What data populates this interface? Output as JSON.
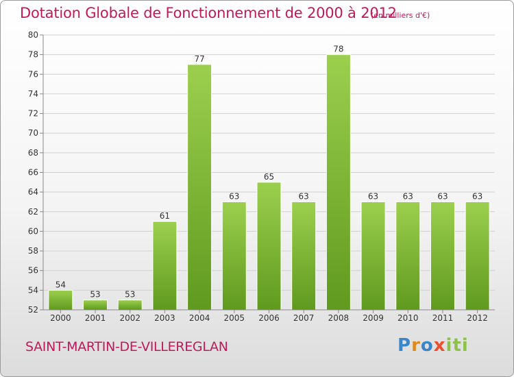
{
  "title": "Dotation Globale de Fonctionnement de 2000 à 2012",
  "subtitle": "(en milliers d'€)",
  "commune": "SAINT-MARTIN-DE-VILLEREGLAN",
  "logo": {
    "text": "Proxiti"
  },
  "colors": {
    "bar": "#8dc63f",
    "bar_dark": "#5f9a1e",
    "title": "#c2185b"
  },
  "chart_data": {
    "type": "bar",
    "title": "Dotation Globale de Fonctionnement de 2000 à 2012",
    "subtitle": "(en milliers d'€)",
    "categories": [
      "2000",
      "2001",
      "2002",
      "2003",
      "2004",
      "2005",
      "2006",
      "2007",
      "2008",
      "2009",
      "2010",
      "2011",
      "2012"
    ],
    "values": [
      54,
      53,
      53,
      61,
      77,
      63,
      65,
      63,
      78,
      63,
      63,
      63,
      63
    ],
    "ylim": [
      52,
      80
    ],
    "yticks": [
      52,
      54,
      56,
      58,
      60,
      62,
      64,
      66,
      68,
      70,
      72,
      74,
      76,
      78,
      80
    ],
    "grid": true,
    "xlabel": "",
    "ylabel": ""
  }
}
